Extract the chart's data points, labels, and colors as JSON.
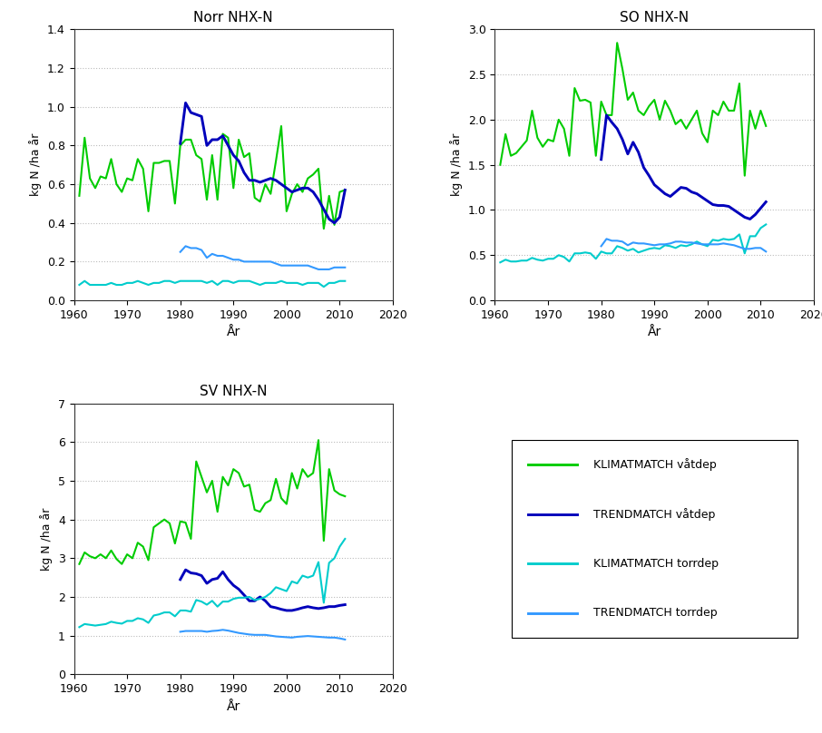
{
  "title_norr": "Norr NHX-N",
  "title_so": "SO NHX-N",
  "title_sv": "SV NHX-N",
  "xlabel": "År",
  "ylabel": "kg N /ha år",
  "xlim": [
    1960,
    2020
  ],
  "xticks": [
    1960,
    1970,
    1980,
    1990,
    2000,
    2010,
    2020
  ],
  "norr_ylim": [
    0,
    1.4
  ],
  "norr_yticks": [
    0,
    0.2,
    0.4,
    0.6,
    0.8,
    1.0,
    1.2,
    1.4
  ],
  "so_ylim": [
    0,
    3.0
  ],
  "so_yticks": [
    0,
    0.5,
    1.0,
    1.5,
    2.0,
    2.5,
    3.0
  ],
  "sv_ylim": [
    0,
    7
  ],
  "sv_yticks": [
    0,
    1,
    2,
    3,
    4,
    5,
    6,
    7
  ],
  "years_klimat": [
    1961,
    1962,
    1963,
    1964,
    1965,
    1966,
    1967,
    1968,
    1969,
    1970,
    1971,
    1972,
    1973,
    1974,
    1975,
    1976,
    1977,
    1978,
    1979,
    1980,
    1981,
    1982,
    1983,
    1984,
    1985,
    1986,
    1987,
    1988,
    1989,
    1990,
    1991,
    1992,
    1993,
    1994,
    1995,
    1996,
    1997,
    1998,
    1999,
    2000,
    2001,
    2002,
    2003,
    2004,
    2005,
    2006,
    2007,
    2008,
    2009,
    2010,
    2011
  ],
  "years_trend": [
    1980,
    1981,
    1982,
    1983,
    1984,
    1985,
    1986,
    1987,
    1988,
    1989,
    1990,
    1991,
    1992,
    1993,
    1994,
    1995,
    1996,
    1997,
    1998,
    1999,
    2000,
    2001,
    2002,
    2003,
    2004,
    2005,
    2006,
    2007,
    2008,
    2009,
    2010,
    2011
  ],
  "norr_vatdep_klimat": [
    0.54,
    0.84,
    0.63,
    0.58,
    0.64,
    0.63,
    0.73,
    0.6,
    0.56,
    0.63,
    0.62,
    0.73,
    0.68,
    0.46,
    0.71,
    0.71,
    0.72,
    0.72,
    0.5,
    0.8,
    0.83,
    0.83,
    0.75,
    0.73,
    0.52,
    0.75,
    0.52,
    0.86,
    0.84,
    0.58,
    0.83,
    0.74,
    0.76,
    0.53,
    0.51,
    0.6,
    0.55,
    0.72,
    0.9,
    0.46,
    0.55,
    0.6,
    0.56,
    0.63,
    0.65,
    0.68,
    0.37,
    0.54,
    0.39,
    0.56,
    0.57
  ],
  "norr_vatdep_trend": [
    0.81,
    1.02,
    0.97,
    0.96,
    0.95,
    0.8,
    0.83,
    0.83,
    0.85,
    0.8,
    0.75,
    0.72,
    0.66,
    0.62,
    0.62,
    0.61,
    0.62,
    0.63,
    0.62,
    0.6,
    0.58,
    0.56,
    0.57,
    0.58,
    0.58,
    0.56,
    0.52,
    0.47,
    0.42,
    0.4,
    0.43,
    0.57
  ],
  "norr_torrdep_klimat": [
    0.08,
    0.1,
    0.08,
    0.08,
    0.08,
    0.08,
    0.09,
    0.08,
    0.08,
    0.09,
    0.09,
    0.1,
    0.09,
    0.08,
    0.09,
    0.09,
    0.1,
    0.1,
    0.09,
    0.1,
    0.1,
    0.1,
    0.1,
    0.1,
    0.09,
    0.1,
    0.08,
    0.1,
    0.1,
    0.09,
    0.1,
    0.1,
    0.1,
    0.09,
    0.08,
    0.09,
    0.09,
    0.09,
    0.1,
    0.09,
    0.09,
    0.09,
    0.08,
    0.09,
    0.09,
    0.09,
    0.07,
    0.09,
    0.09,
    0.1,
    0.1
  ],
  "norr_torrdep_trend": [
    0.25,
    0.28,
    0.27,
    0.27,
    0.26,
    0.22,
    0.24,
    0.23,
    0.23,
    0.22,
    0.21,
    0.21,
    0.2,
    0.2,
    0.2,
    0.2,
    0.2,
    0.2,
    0.19,
    0.18,
    0.18,
    0.18,
    0.18,
    0.18,
    0.18,
    0.17,
    0.16,
    0.16,
    0.16,
    0.17,
    0.17,
    0.17
  ],
  "so_vatdep_klimat": [
    1.5,
    1.84,
    1.6,
    1.63,
    1.7,
    1.77,
    2.1,
    1.8,
    1.7,
    1.78,
    1.76,
    2.0,
    1.9,
    1.6,
    2.35,
    2.21,
    2.22,
    2.19,
    1.6,
    2.2,
    2.05,
    2.05,
    2.85,
    2.56,
    2.22,
    2.3,
    2.1,
    2.05,
    2.15,
    2.22,
    2.0,
    2.21,
    2.1,
    1.95,
    2.0,
    1.9,
    2.0,
    2.1,
    1.85,
    1.75,
    2.1,
    2.05,
    2.2,
    2.1,
    2.1,
    2.4,
    1.38,
    2.1,
    1.9,
    2.1,
    1.93
  ],
  "so_vatdep_trend": [
    1.56,
    2.05,
    1.97,
    1.9,
    1.78,
    1.62,
    1.75,
    1.64,
    1.47,
    1.38,
    1.28,
    1.23,
    1.18,
    1.15,
    1.2,
    1.25,
    1.24,
    1.2,
    1.18,
    1.14,
    1.1,
    1.06,
    1.05,
    1.05,
    1.04,
    1.0,
    0.96,
    0.92,
    0.9,
    0.95,
    1.02,
    1.09
  ],
  "so_torrdep_klimat": [
    0.42,
    0.45,
    0.43,
    0.43,
    0.44,
    0.44,
    0.47,
    0.45,
    0.44,
    0.46,
    0.46,
    0.5,
    0.48,
    0.43,
    0.52,
    0.52,
    0.53,
    0.52,
    0.46,
    0.54,
    0.52,
    0.52,
    0.6,
    0.58,
    0.55,
    0.57,
    0.53,
    0.55,
    0.57,
    0.58,
    0.57,
    0.61,
    0.6,
    0.58,
    0.61,
    0.6,
    0.62,
    0.65,
    0.62,
    0.6,
    0.67,
    0.66,
    0.68,
    0.67,
    0.68,
    0.73,
    0.52,
    0.71,
    0.71,
    0.8,
    0.84
  ],
  "so_torrdep_trend": [
    0.6,
    0.68,
    0.66,
    0.66,
    0.65,
    0.61,
    0.64,
    0.63,
    0.63,
    0.62,
    0.61,
    0.62,
    0.62,
    0.63,
    0.65,
    0.65,
    0.64,
    0.64,
    0.63,
    0.62,
    0.62,
    0.62,
    0.62,
    0.63,
    0.62,
    0.61,
    0.59,
    0.57,
    0.57,
    0.58,
    0.58,
    0.54
  ],
  "sv_vatdep_klimat": [
    2.85,
    3.15,
    3.05,
    3.0,
    3.1,
    3.0,
    3.2,
    2.98,
    2.85,
    3.1,
    3.0,
    3.4,
    3.3,
    2.95,
    3.8,
    3.9,
    4.0,
    3.9,
    3.38,
    3.95,
    3.92,
    3.5,
    5.5,
    5.1,
    4.7,
    5.0,
    4.2,
    5.1,
    4.88,
    5.3,
    5.2,
    4.85,
    4.9,
    4.25,
    4.2,
    4.42,
    4.5,
    5.05,
    4.55,
    4.4,
    5.2,
    4.8,
    5.3,
    5.1,
    5.2,
    6.05,
    3.45,
    5.3,
    4.75,
    4.65,
    4.6
  ],
  "sv_vatdep_trend": [
    2.45,
    2.7,
    2.62,
    2.6,
    2.55,
    2.35,
    2.45,
    2.48,
    2.65,
    2.45,
    2.3,
    2.2,
    2.05,
    1.9,
    1.9,
    2.0,
    1.9,
    1.75,
    1.72,
    1.68,
    1.65,
    1.65,
    1.68,
    1.72,
    1.75,
    1.72,
    1.7,
    1.72,
    1.75,
    1.75,
    1.78,
    1.8
  ],
  "sv_torrdep_klimat": [
    1.22,
    1.3,
    1.28,
    1.26,
    1.28,
    1.3,
    1.36,
    1.33,
    1.31,
    1.38,
    1.38,
    1.45,
    1.42,
    1.33,
    1.52,
    1.55,
    1.6,
    1.6,
    1.5,
    1.65,
    1.65,
    1.62,
    1.92,
    1.88,
    1.8,
    1.9,
    1.75,
    1.88,
    1.88,
    1.95,
    1.98,
    1.98,
    2.0,
    1.92,
    1.95,
    2.0,
    2.1,
    2.25,
    2.2,
    2.15,
    2.4,
    2.35,
    2.55,
    2.5,
    2.55,
    2.9,
    1.85,
    2.88,
    3.0,
    3.3,
    3.5
  ],
  "sv_torrdep_trend": [
    1.1,
    1.12,
    1.12,
    1.12,
    1.12,
    1.1,
    1.12,
    1.13,
    1.15,
    1.13,
    1.1,
    1.07,
    1.05,
    1.03,
    1.02,
    1.02,
    1.02,
    1.0,
    0.98,
    0.97,
    0.96,
    0.95,
    0.97,
    0.98,
    0.99,
    0.98,
    0.97,
    0.96,
    0.95,
    0.95,
    0.93,
    0.9
  ],
  "color_klimat_vat": "#00CC00",
  "color_trend_vat": "#0000BB",
  "color_klimat_torr": "#00CCCC",
  "color_trend_torr": "#3399FF",
  "legend_labels": [
    "KLIMATMATCH våtdep",
    "TRENDMATCH våtdep",
    "KLIMATMATCH torrdep",
    "TRENDMATCH torrdep"
  ],
  "linewidth": 1.5,
  "background_color": "#ffffff"
}
